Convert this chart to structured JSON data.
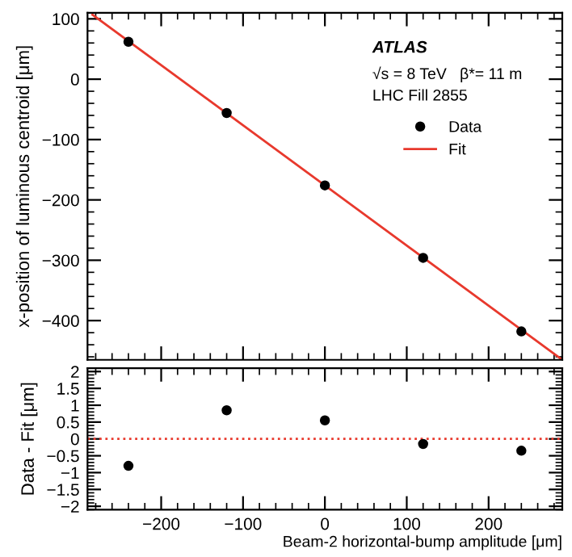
{
  "chart_data": [
    {
      "type": "scatter",
      "ylabel": "x-position of luminous centroid [μm]",
      "xlim": [
        -290,
        290
      ],
      "ylim": [
        -465,
        110
      ],
      "xticks": [
        -200,
        -100,
        0,
        100,
        200
      ],
      "yticks": [
        -400,
        -300,
        -200,
        -100,
        0,
        100
      ],
      "tick_labels": "y",
      "legend": "top right",
      "annotations": [
        "ATLAS",
        "√s = 8 TeV   β*= 11 m",
        "LHC Fill 2855"
      ],
      "series": [
        {
          "name": "Data",
          "marker": "circle",
          "color": "#000000",
          "x": [
            -240,
            -120,
            0,
            120,
            240
          ],
          "values": [
            62,
            -56,
            -176,
            -296,
            -418
          ]
        },
        {
          "name": "Fit",
          "type": "line",
          "color": "#e8392d",
          "x": [
            -284,
            290
          ],
          "values": [
            107,
            -465
          ]
        }
      ]
    },
    {
      "type": "scatter",
      "xlabel": "Beam-2 horizontal-bump amplitude [μm]",
      "ylabel": "Data - Fit [μm]",
      "xlim": [
        -290,
        290
      ],
      "ylim": [
        -2.1,
        2.1
      ],
      "xticks": [
        -200,
        -100,
        0,
        100,
        200
      ],
      "yticks": [
        -2,
        -1.5,
        -1,
        -0.5,
        0,
        0.5,
        1,
        1.5,
        2
      ],
      "marker": "circle",
      "ref_lines": [
        {
          "axis": "y",
          "value": 0,
          "color": "#e8392d",
          "line_style": "dotted"
        }
      ],
      "series": [
        {
          "color": "#000000",
          "x": [
            -240,
            -120,
            0,
            120,
            240
          ],
          "values": [
            -0.8,
            0.85,
            0.55,
            -0.15,
            -0.35
          ],
          "errors": [
            0.1,
            0.1,
            0.1,
            0.1,
            0.1
          ]
        }
      ]
    }
  ]
}
